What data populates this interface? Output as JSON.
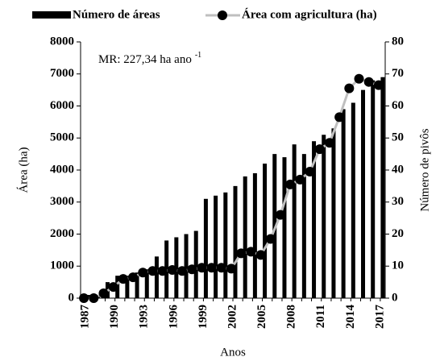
{
  "chart_data": {
    "type": "bar_line",
    "annotation": "MR: 227,34 ha ano",
    "annotation_sup": "-1",
    "xlabel": "Anos",
    "ylabel": "Área (ha)",
    "y2label": "Número de pivôs",
    "categories": [
      "1987",
      null,
      null,
      "1990",
      null,
      null,
      "1993",
      null,
      null,
      "1996",
      null,
      null,
      "1999",
      null,
      null,
      "2002",
      null,
      null,
      "2005",
      null,
      null,
      "2008",
      null,
      null,
      "2011",
      null,
      null,
      "2014",
      null,
      null,
      "2017"
    ],
    "series": [
      {
        "name": "Número de áreas",
        "color": "#000000",
        "type": "bar",
        "axis": "y2",
        "values": [
          1,
          1,
          5,
          7,
          7,
          8,
          9,
          13,
          18,
          19,
          20,
          21,
          31,
          32,
          33,
          35,
          38,
          39,
          42,
          45,
          44,
          48,
          45,
          49,
          51,
          53,
          59,
          61,
          65,
          68,
          69
        ]
      },
      {
        "name": "Área com agricultura (ha)",
        "color": "#bfbfbf",
        "type": "line",
        "values": [
          0,
          0,
          150,
          350,
          600,
          650,
          800,
          850,
          850,
          880,
          850,
          900,
          950,
          950,
          950,
          920,
          1400,
          1450,
          1350,
          1850,
          2600,
          3550,
          3700,
          3950,
          4650,
          4850,
          5650,
          6550,
          6850,
          6750,
          6650
        ]
      }
    ],
    "ylim": [
      0,
      8000
    ],
    "yticks": [
      0,
      1000,
      2000,
      3000,
      4000,
      5000,
      6000,
      7000,
      8000
    ],
    "y2lim": [
      0,
      80
    ],
    "y2ticks": [
      0,
      10,
      20,
      30,
      40,
      50,
      60,
      70,
      80
    ],
    "legend": "top"
  }
}
